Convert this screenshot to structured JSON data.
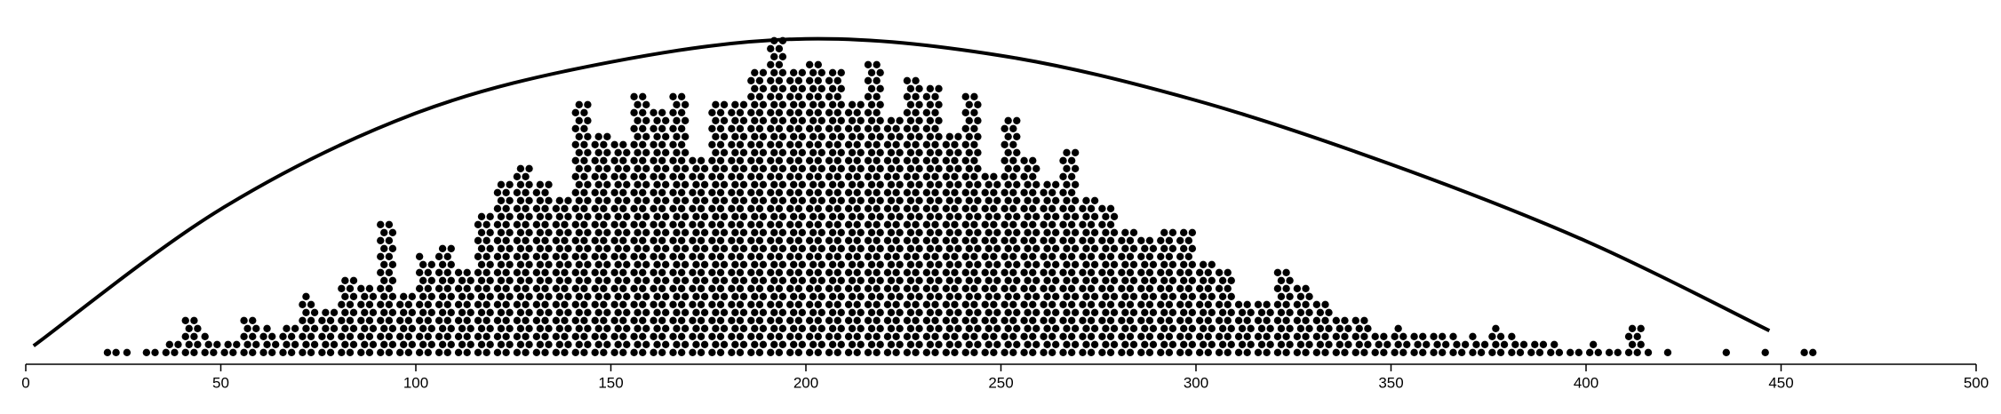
{
  "chart_data": {
    "type": "dotplot",
    "color": "#000000",
    "bins": [
      20,
      25,
      30,
      35,
      40,
      45,
      50,
      55,
      60,
      65,
      70,
      75,
      80,
      85,
      90,
      95,
      100,
      105,
      110,
      115,
      120,
      125,
      130,
      135,
      140,
      145,
      150,
      155,
      160,
      165,
      170,
      175,
      180,
      185,
      190,
      195,
      200,
      205,
      210,
      215,
      220,
      225,
      230,
      235,
      240,
      245,
      250,
      255,
      260,
      265,
      270,
      275,
      280,
      285,
      290,
      295,
      300,
      305,
      310,
      315,
      320,
      325,
      330,
      335,
      340,
      345,
      350,
      355,
      360,
      365,
      370,
      375,
      380,
      385,
      390,
      395,
      400,
      405,
      410,
      415,
      420,
      425,
      430,
      435,
      440,
      445,
      450,
      455,
      460
    ],
    "counts": [
      2,
      1,
      2,
      4,
      10,
      5,
      4,
      10,
      7,
      8,
      15,
      12,
      20,
      18,
      34,
      16,
      25,
      28,
      22,
      36,
      44,
      48,
      44,
      40,
      64,
      56,
      54,
      66,
      62,
      66,
      50,
      64,
      64,
      72,
      80,
      72,
      74,
      72,
      64,
      74,
      60,
      70,
      68,
      56,
      66,
      46,
      60,
      50,
      44,
      52,
      40,
      38,
      32,
      30,
      32,
      32,
      24,
      22,
      14,
      14,
      22,
      18,
      14,
      10,
      10,
      6,
      7,
      6,
      6,
      5,
      5,
      7,
      5,
      4,
      3,
      2,
      3,
      2,
      8,
      1,
      1,
      0,
      0,
      1,
      0,
      1,
      0,
      2
    ],
    "curve": {
      "color": "#000000",
      "x": [
        2,
        50,
        100,
        150,
        200,
        250,
        300,
        350,
        400,
        447
      ],
      "y": [
        1.3,
        18.4,
        30.4,
        36.8,
        39.7,
        37.6,
        32,
        24,
        14.4,
        3.2
      ]
    },
    "xlim": [
      0,
      500
    ],
    "xticks": [
      0,
      50,
      100,
      150,
      200,
      250,
      300,
      350,
      400,
      450,
      500
    ],
    "ylim": [
      0,
      44
    ]
  }
}
